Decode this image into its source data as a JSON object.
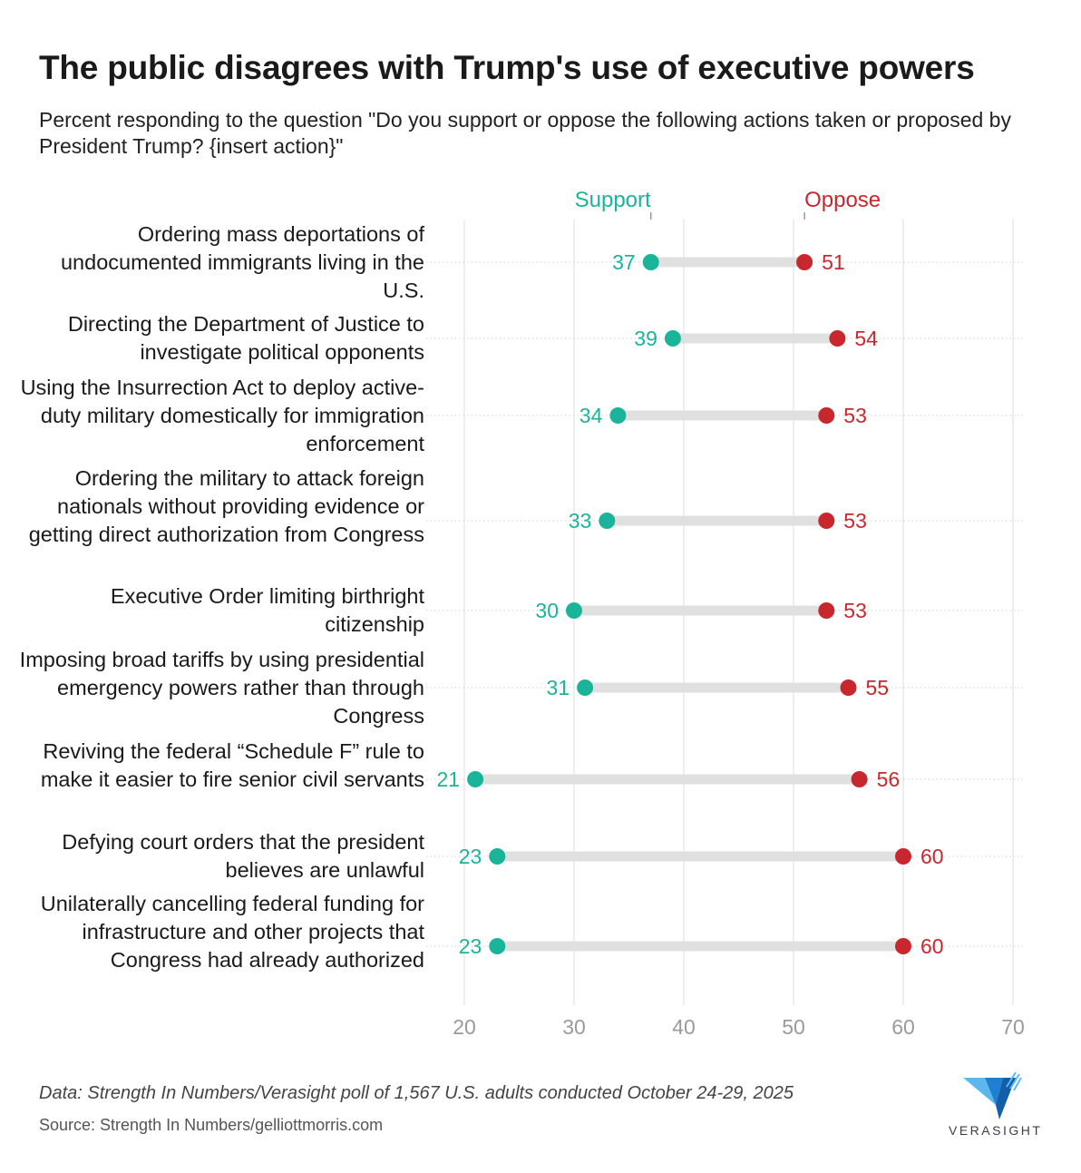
{
  "chart_data": {
    "type": "dumbbell",
    "title": "The public disagrees with Trump's use of executive powers",
    "subtitle": "Percent responding to the question \"Do you support or oppose the following actions taken or proposed by President Trump? {insert action}\"",
    "categories": [
      "Ordering mass deportations of undocumented immigrants living in the U.S.",
      "Directing the Department of Justice to investigate political opponents",
      "Using the Insurrection Act to deploy active-duty military domestically for immigration enforcement",
      "Ordering the military to attack foreign nationals without providing evidence or getting direct authorization from Congress",
      "Executive Order limiting birthright citizenship",
      "Imposing broad tariffs by using presidential emergency powers rather than through Congress",
      "Reviving the federal “Schedule F” rule to make it easier to fire senior civil servants",
      "Defying court orders that the president believes are unlawful",
      "Unilaterally cancelling federal funding for infrastructure and other projects that Congress had already authorized"
    ],
    "series": [
      {
        "name": "Support",
        "color": "#1ab49a",
        "values": [
          37,
          39,
          34,
          33,
          30,
          31,
          21,
          23,
          23
        ]
      },
      {
        "name": "Oppose",
        "color": "#c8282d",
        "values": [
          51,
          54,
          53,
          53,
          53,
          55,
          56,
          60,
          60
        ]
      }
    ],
    "xlim": [
      20,
      70
    ],
    "xticks": [
      20,
      30,
      40,
      50,
      60,
      70
    ],
    "grid": true,
    "legend": "top-inline"
  },
  "footnote": "Data: Strength In Numbers/Verasight poll of 1,567 U.S. adults conducted October 24-29, 2025",
  "source": "Source: Strength In Numbers/gelliottmorris.com",
  "logo": {
    "text": "VERASIGHT",
    "color": "#1f7fd0"
  }
}
